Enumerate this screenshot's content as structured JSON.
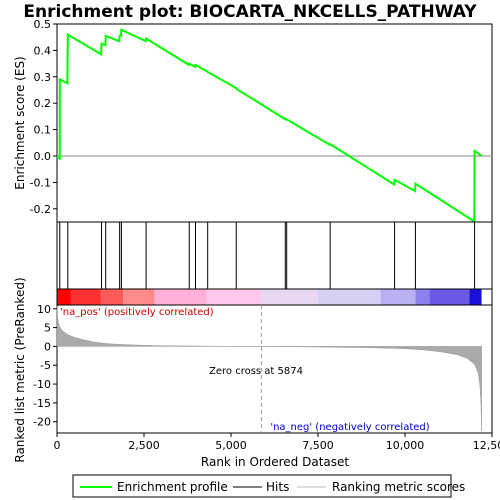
{
  "chart_data": {
    "type": "line",
    "title": "Enrichment plot: BIOCARTA_NKCELLS_PATHWAY",
    "xlabel": "Rank in Ordered Dataset",
    "es_ylabel": "Enrichment score (ES)",
    "metric_ylabel": "Ranked list metric (PreRanked)",
    "xlim": [
      0,
      12500
    ],
    "es_ylim": [
      -0.25,
      0.5
    ],
    "metric_ylim": [
      -23,
      11
    ],
    "x_ticks": [
      0,
      2500,
      5000,
      7500,
      10000,
      12500
    ],
    "x_tick_labels": [
      "0",
      "2,500",
      "5,000",
      "7,500",
      "10,000",
      "12,500"
    ],
    "es_ticks": [
      -0.2,
      -0.1,
      0.0,
      0.1,
      0.2,
      0.3,
      0.4,
      0.5
    ],
    "es_tick_labels": [
      "-0.2",
      "-0.1",
      "0.0",
      "0.1",
      "0.2",
      "0.3",
      "0.4",
      "0.5"
    ],
    "metric_ticks": [
      10,
      5,
      0,
      -5,
      -10,
      -15,
      -20
    ],
    "metric_tick_labels": [
      "10",
      "5",
      "0",
      "-5",
      "-10",
      "-15",
      "-20"
    ],
    "hits": [
      80,
      310,
      1280,
      1400,
      1800,
      1850,
      2560,
      3800,
      3980,
      4330,
      5150,
      6560,
      6600,
      7850,
      9700,
      10300,
      12000
    ],
    "enrichment_profile": {
      "x": [
        0,
        30,
        79,
        80,
        300,
        310,
        1270,
        1280,
        1390,
        1400,
        1790,
        1800,
        1840,
        1850,
        2550,
        2560,
        3790,
        3800,
        3970,
        3980,
        4320,
        4330,
        5140,
        5150,
        6550,
        6560,
        6590,
        6600,
        7840,
        7850,
        9690,
        9700,
        10290,
        10300,
        11990,
        12000,
        12200
      ],
      "y": [
        0.0,
        -0.005,
        -0.01,
        0.29,
        0.275,
        0.46,
        0.385,
        0.425,
        0.42,
        0.455,
        0.435,
        0.455,
        0.455,
        0.478,
        0.435,
        0.445,
        0.345,
        0.35,
        0.338,
        0.345,
        0.32,
        0.318,
        0.258,
        0.255,
        0.14,
        0.142,
        0.138,
        0.139,
        0.042,
        0.045,
        -0.108,
        -0.09,
        -0.133,
        -0.105,
        -0.248,
        0.02,
        0.0
      ]
    },
    "ranking_metric": {
      "x": [
        0,
        20,
        60,
        150,
        300,
        500,
        800,
        1100,
        1500,
        2000,
        2500,
        3000,
        4000,
        5000,
        5874,
        7000,
        8000,
        9000,
        10000,
        10500,
        11000,
        11500,
        11800,
        12000,
        12100,
        12150,
        12180,
        12200
      ],
      "y": [
        10.5,
        7.5,
        5.5,
        4.2,
        3.2,
        2.4,
        1.7,
        1.1,
        0.7,
        0.45,
        0.3,
        0.2,
        0.1,
        0.03,
        0.0,
        -0.1,
        -0.2,
        -0.35,
        -0.6,
        -0.9,
        -1.4,
        -2.2,
        -3.2,
        -4.8,
        -7.0,
        -10.0,
        -15.0,
        -22.5
      ]
    },
    "zero_cross": 5874,
    "zero_cross_label": "Zero cross at 5874",
    "pos_label": "'na_pos' (positively correlated)",
    "neg_label": "'na_neg' (negatively correlated)",
    "heat_segments": [
      {
        "x0": 0,
        "x1": 400,
        "color": "#ff0000"
      },
      {
        "x0": 400,
        "x1": 1250,
        "color": "#ff3030"
      },
      {
        "x0": 1250,
        "x1": 1900,
        "color": "#ff5a5a"
      },
      {
        "x0": 1900,
        "x1": 2800,
        "color": "#ff8a8a"
      },
      {
        "x0": 2800,
        "x1": 4300,
        "color": "#ffb0d8"
      },
      {
        "x0": 4300,
        "x1": 5874,
        "color": "#ffc8ec"
      },
      {
        "x0": 5874,
        "x1": 7500,
        "color": "#e8d8f4"
      },
      {
        "x0": 7500,
        "x1": 9300,
        "color": "#d8d0f4"
      },
      {
        "x0": 9300,
        "x1": 10300,
        "color": "#b8b0f0"
      },
      {
        "x0": 10300,
        "x1": 10700,
        "color": "#8a80ee"
      },
      {
        "x0": 10700,
        "x1": 11850,
        "color": "#6a5ae6"
      },
      {
        "x0": 11850,
        "x1": 12200,
        "color": "#1a10d8"
      }
    ],
    "legend": [
      "Enrichment profile",
      "Hits",
      "Ranking metric scores"
    ],
    "colors": {
      "profile": "#00ff00",
      "hits": "#000000",
      "metric_fill": "#aaaaaa",
      "pos_text": "#cc0000",
      "neg_text": "#0000cc",
      "zero_line": "#999999",
      "frame": "#000000"
    }
  }
}
